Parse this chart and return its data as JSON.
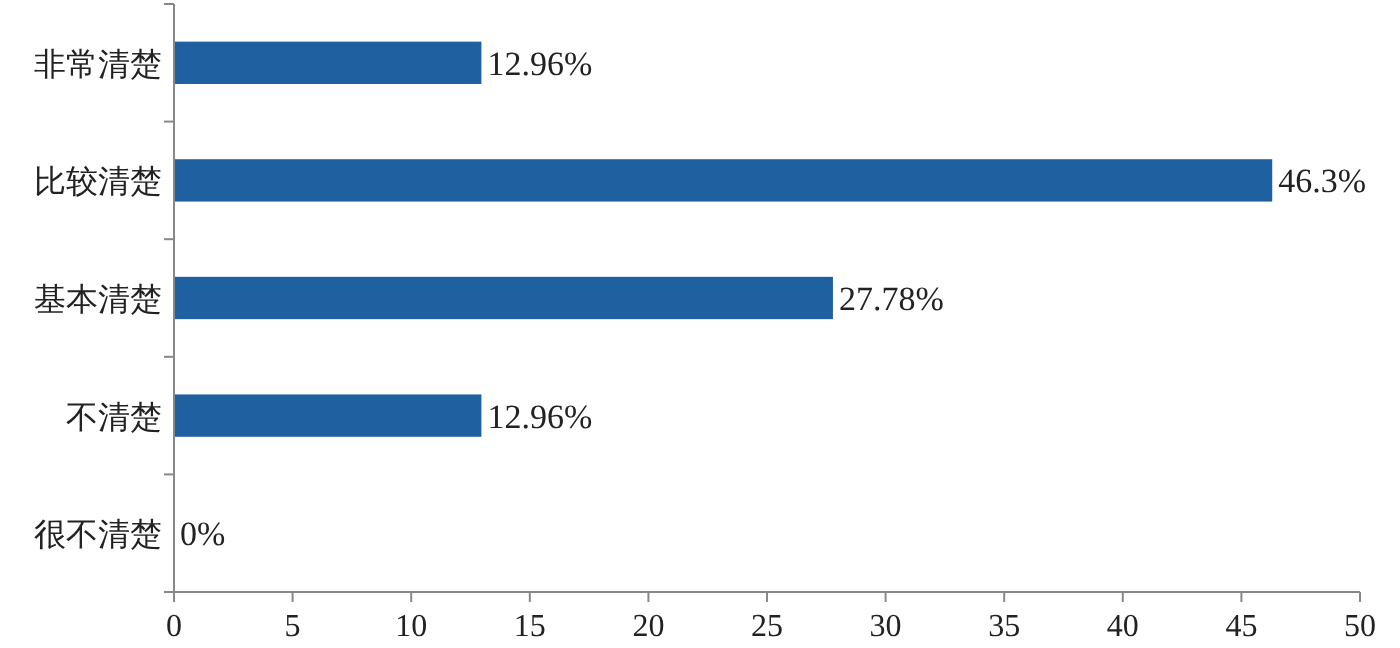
{
  "chart_data": {
    "type": "bar",
    "orientation": "horizontal",
    "categories": [
      "非常清楚",
      "比较清楚",
      "基本清楚",
      "不清楚",
      "很不清楚"
    ],
    "values": [
      12.96,
      46.3,
      27.78,
      12.96,
      0
    ],
    "value_labels": [
      "12.96%",
      "46.3%",
      "27.78%",
      "12.96%",
      "0%"
    ],
    "color": "#1f60a0",
    "xlim": [
      0,
      50
    ],
    "xticks": [
      0,
      5,
      10,
      15,
      20,
      25,
      30,
      35,
      40,
      45,
      50
    ]
  }
}
